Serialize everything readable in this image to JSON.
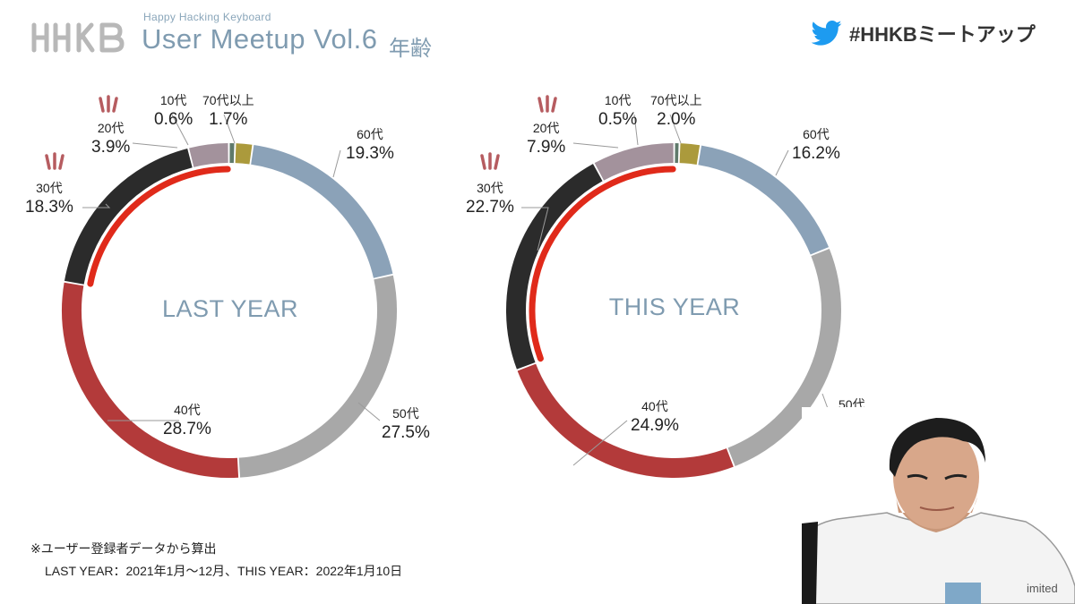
{
  "header": {
    "brand_logo": "HHKB",
    "sub_brand": "Happy Hacking Keyboard",
    "event_title": "User Meetup Vol.6",
    "topic": "年齢",
    "hashtag": "#HHKBミートアップ",
    "hashtag_icon": "twitter-bird-icon"
  },
  "colors": {
    "10s": "#5f7a6b",
    "20s": "#a3929c",
    "30s": "#2b2b2b",
    "40s": "#b33a3a",
    "50s": "#a8a8a8",
    "60s": "#8ba2b8",
    "70plus": "#ab9a3c",
    "highlight_arc": "#e02a1a",
    "emphasis_ticks": "#b65c60",
    "title_blue": "#7f9bb0"
  },
  "chart_data": [
    {
      "type": "pie",
      "center_label": "LAST YEAR",
      "categories": [
        "10代",
        "20代",
        "30代",
        "40代",
        "50代",
        "60代",
        "70代以上"
      ],
      "values": [
        0.6,
        3.9,
        18.3,
        28.7,
        27.5,
        19.3,
        1.7
      ],
      "value_labels": [
        "0.6%",
        "3.9%",
        "18.3%",
        "28.7%",
        "27.5%",
        "19.3%",
        "1.7%"
      ],
      "emphasized": [
        "20代",
        "30代"
      ]
    },
    {
      "type": "pie",
      "center_label": "THIS YEAR",
      "categories": [
        "10代",
        "20代",
        "30代",
        "40代",
        "50代",
        "60代",
        "70代以上"
      ],
      "values": [
        0.5,
        7.9,
        22.7,
        24.9,
        25.0,
        16.2,
        2.0
      ],
      "value_labels": [
        "0.5%",
        "7.9%",
        "22.7%",
        "24.9%",
        "25",
        "16.2%",
        "2.0%"
      ],
      "emphasized": [
        "20代",
        "30代"
      ]
    }
  ],
  "footnote": {
    "line1": "※ユーザー登録者データから算出",
    "line2": "LAST YEAR：2021年1月～12月、THIS YEAR：2022年1月10日"
  },
  "overlay": {
    "corner_text": "imited"
  }
}
